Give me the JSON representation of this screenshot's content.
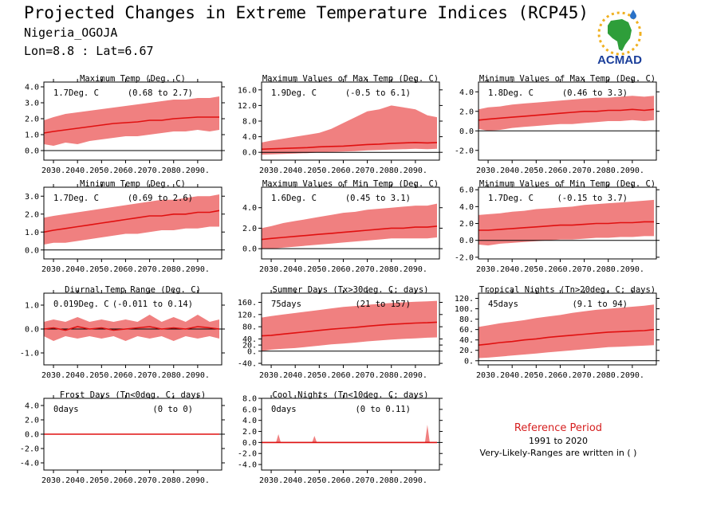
{
  "title": "Projected Changes in Extreme Temperature Indices (RCP45)",
  "location": "Nigeria_OGOJA",
  "coords": "Lon=8.8 : Lat=6.67",
  "logo_text": "ACMAD",
  "reference": {
    "title": "Reference Period",
    "years": "1991 to 2020",
    "note": "Very-Likely-Ranges are written in ( )"
  },
  "colors": {
    "band": "#f08080",
    "line": "#e01010",
    "zero": "#000000",
    "ref_text": "#d62020"
  },
  "chart_data": [
    {
      "type": "area",
      "title": "Maximum Temp (Deg. C)",
      "mean_label": "1.7Deg. C",
      "range_label": "(0.68 to 2.7)",
      "x_ticks": [
        2030,
        2040,
        2050,
        2060,
        2070,
        2080,
        2090
      ],
      "x_tick_labels": [
        "2030.",
        "2040.",
        "2050.",
        "2060.",
        "2070.",
        "2080.",
        "2090."
      ],
      "xlim": [
        2026,
        2100
      ],
      "ylim": [
        -0.6,
        4.3
      ],
      "y_ticks": [
        0,
        1,
        2,
        3,
        4
      ],
      "y_tick_labels": [
        "0.0",
        "1.0",
        "2.0",
        "3.0",
        "4.0"
      ],
      "x": [
        2026,
        2030,
        2035,
        2040,
        2045,
        2050,
        2055,
        2060,
        2065,
        2070,
        2075,
        2080,
        2085,
        2090,
        2095,
        2099
      ],
      "mean": [
        1.1,
        1.2,
        1.3,
        1.4,
        1.5,
        1.6,
        1.7,
        1.75,
        1.8,
        1.9,
        1.9,
        2.0,
        2.05,
        2.1,
        2.1,
        2.1
      ],
      "low": [
        0.4,
        0.3,
        0.5,
        0.4,
        0.6,
        0.7,
        0.8,
        0.9,
        0.9,
        1.0,
        1.1,
        1.2,
        1.2,
        1.3,
        1.2,
        1.3
      ],
      "high": [
        1.9,
        2.1,
        2.3,
        2.4,
        2.5,
        2.6,
        2.7,
        2.8,
        2.9,
        3.0,
        3.1,
        3.2,
        3.2,
        3.3,
        3.3,
        3.4
      ]
    },
    {
      "type": "area",
      "title": "Maximum Values of Max Temp (Deg. C)",
      "mean_label": "1.9Deg. C",
      "range_label": "(-0.5 to 6.1)",
      "x_ticks": [
        2030,
        2040,
        2050,
        2060,
        2070,
        2080,
        2090
      ],
      "x_tick_labels": [
        "2030.",
        "2040.",
        "2050.",
        "2060.",
        "2070.",
        "2080.",
        "2090."
      ],
      "xlim": [
        2026,
        2100
      ],
      "ylim": [
        -2,
        18
      ],
      "y_ticks": [
        0,
        4,
        8,
        12,
        16
      ],
      "y_tick_labels": [
        "0.0",
        "4.0",
        "8.0",
        "12.0",
        "16.0"
      ],
      "x": [
        2026,
        2030,
        2035,
        2040,
        2045,
        2050,
        2055,
        2060,
        2065,
        2070,
        2075,
        2080,
        2085,
        2090,
        2095,
        2099
      ],
      "mean": [
        0.8,
        0.9,
        1.0,
        1.1,
        1.2,
        1.4,
        1.5,
        1.6,
        1.8,
        2.0,
        2.1,
        2.3,
        2.4,
        2.5,
        2.4,
        2.5
      ],
      "low": [
        -0.6,
        -0.5,
        -0.4,
        -0.3,
        -0.2,
        0.0,
        0.1,
        0.2,
        0.3,
        0.5,
        0.6,
        0.7,
        0.8,
        0.9,
        0.8,
        0.9
      ],
      "high": [
        2.5,
        3.0,
        3.5,
        4.0,
        4.5,
        5.0,
        6.0,
        7.5,
        9.0,
        10.5,
        11.0,
        12.0,
        11.5,
        11.0,
        9.5,
        9.0
      ]
    },
    {
      "type": "area",
      "title": "Minimum Values of Max Temp (Deg. C)",
      "mean_label": "1.8Deg. C",
      "range_label": "(0.46 to 3.3)",
      "x_ticks": [
        2030,
        2040,
        2050,
        2060,
        2070,
        2080,
        2090
      ],
      "x_tick_labels": [
        "2030.",
        "2040.",
        "2050.",
        "2060.",
        "2070.",
        "2080.",
        "2090."
      ],
      "xlim": [
        2026,
        2100
      ],
      "ylim": [
        -3,
        5
      ],
      "y_ticks": [
        -2,
        0,
        2,
        4
      ],
      "y_tick_labels": [
        "-2.0",
        "0.0",
        "2.0",
        "4.0"
      ],
      "x": [
        2026,
        2030,
        2035,
        2040,
        2045,
        2050,
        2055,
        2060,
        2065,
        2070,
        2075,
        2080,
        2085,
        2090,
        2095,
        2099
      ],
      "mean": [
        1.1,
        1.2,
        1.3,
        1.4,
        1.5,
        1.6,
        1.7,
        1.8,
        1.9,
        2.0,
        2.0,
        2.1,
        2.1,
        2.2,
        2.1,
        2.2
      ],
      "low": [
        0.2,
        0.0,
        0.1,
        0.3,
        0.4,
        0.5,
        0.6,
        0.7,
        0.7,
        0.8,
        0.9,
        1.0,
        1.0,
        1.1,
        1.0,
        1.1
      ],
      "high": [
        2.2,
        2.4,
        2.5,
        2.7,
        2.8,
        2.9,
        3.0,
        3.1,
        3.2,
        3.3,
        3.4,
        3.4,
        3.5,
        3.6,
        3.5,
        3.6
      ]
    },
    {
      "type": "area",
      "title": "Minimum Temp (Deg. C)",
      "mean_label": "1.7Deg. C",
      "range_label": "(0.69 to 2.6)",
      "x_ticks": [
        2030,
        2040,
        2050,
        2060,
        2070,
        2080,
        2090
      ],
      "x_tick_labels": [
        "2030.",
        "2040.",
        "2050.",
        "2060.",
        "2070.",
        "2080.",
        "2090."
      ],
      "xlim": [
        2026,
        2100
      ],
      "ylim": [
        -0.5,
        3.5
      ],
      "y_ticks": [
        0,
        1,
        2,
        3
      ],
      "y_tick_labels": [
        "0.0",
        "1.0",
        "2.0",
        "3.0"
      ],
      "x": [
        2026,
        2030,
        2035,
        2040,
        2045,
        2050,
        2055,
        2060,
        2065,
        2070,
        2075,
        2080,
        2085,
        2090,
        2095,
        2099
      ],
      "mean": [
        1.0,
        1.1,
        1.2,
        1.3,
        1.4,
        1.5,
        1.6,
        1.7,
        1.8,
        1.9,
        1.9,
        2.0,
        2.0,
        2.1,
        2.1,
        2.2
      ],
      "low": [
        0.3,
        0.4,
        0.4,
        0.5,
        0.6,
        0.7,
        0.8,
        0.9,
        0.9,
        1.0,
        1.1,
        1.1,
        1.2,
        1.2,
        1.3,
        1.3
      ],
      "high": [
        1.8,
        1.9,
        2.0,
        2.1,
        2.2,
        2.3,
        2.4,
        2.5,
        2.6,
        2.7,
        2.8,
        2.8,
        2.9,
        3.0,
        3.0,
        3.1
      ]
    },
    {
      "type": "area",
      "title": "Maximum Values of Min Temp (Deg. C)",
      "mean_label": "1.6Deg. C",
      "range_label": "(0.45 to 3.1)",
      "x_ticks": [
        2030,
        2040,
        2050,
        2060,
        2070,
        2080,
        2090
      ],
      "x_tick_labels": [
        "2030.",
        "2040.",
        "2050.",
        "2060.",
        "2070.",
        "2080.",
        "2090."
      ],
      "xlim": [
        2026,
        2100
      ],
      "ylim": [
        -1,
        6
      ],
      "y_ticks": [
        0,
        2,
        4
      ],
      "y_tick_labels": [
        "0.0",
        "2.0",
        "4.0"
      ],
      "x": [
        2026,
        2030,
        2035,
        2040,
        2045,
        2050,
        2055,
        2060,
        2065,
        2070,
        2075,
        2080,
        2085,
        2090,
        2095,
        2099
      ],
      "mean": [
        0.9,
        1.0,
        1.1,
        1.2,
        1.3,
        1.4,
        1.5,
        1.6,
        1.7,
        1.8,
        1.9,
        2.0,
        2.0,
        2.1,
        2.1,
        2.2
      ],
      "low": [
        0.0,
        0.0,
        0.1,
        0.2,
        0.3,
        0.4,
        0.5,
        0.6,
        0.7,
        0.8,
        0.9,
        1.0,
        1.0,
        1.0,
        1.0,
        1.1
      ],
      "high": [
        2.0,
        2.2,
        2.5,
        2.7,
        2.9,
        3.1,
        3.3,
        3.5,
        3.6,
        3.8,
        3.9,
        4.0,
        4.1,
        4.2,
        4.2,
        4.4
      ]
    },
    {
      "type": "area",
      "title": "Minimum Values of Min Temp (Deg. C)",
      "mean_label": "1.7Deg. C",
      "range_label": "(-0.15 to 3.7)",
      "x_ticks": [
        2030,
        2040,
        2050,
        2060,
        2070,
        2080,
        2090
      ],
      "x_tick_labels": [
        "2030.",
        "2040.",
        "2050.",
        "2060.",
        "2070.",
        "2080.",
        "2090."
      ],
      "xlim": [
        2026,
        2100
      ],
      "ylim": [
        -2.2,
        6.3
      ],
      "y_ticks": [
        -2,
        0,
        2,
        4,
        6
      ],
      "y_tick_labels": [
        "-2.0",
        "0.0",
        "2.0",
        "4.0",
        "6.0"
      ],
      "x": [
        2026,
        2030,
        2035,
        2040,
        2045,
        2050,
        2055,
        2060,
        2065,
        2070,
        2075,
        2080,
        2085,
        2090,
        2095,
        2099
      ],
      "mean": [
        1.2,
        1.2,
        1.3,
        1.4,
        1.5,
        1.6,
        1.7,
        1.8,
        1.8,
        1.9,
        2.0,
        2.0,
        2.1,
        2.1,
        2.2,
        2.2
      ],
      "low": [
        -0.5,
        -0.6,
        -0.4,
        -0.3,
        -0.2,
        -0.1,
        0.0,
        0.1,
        0.1,
        0.2,
        0.3,
        0.3,
        0.4,
        0.4,
        0.5,
        0.5
      ],
      "high": [
        3.0,
        3.1,
        3.2,
        3.4,
        3.5,
        3.7,
        3.8,
        3.9,
        4.0,
        4.2,
        4.3,
        4.4,
        4.5,
        4.6,
        4.7,
        4.8
      ]
    },
    {
      "type": "area",
      "title": "Diurnal Temp Range (Deg. C)",
      "mean_label": "0.019Deg. C",
      "range_label": "(-0.011 to 0.14)",
      "x_ticks": [
        2030,
        2040,
        2050,
        2060,
        2070,
        2080,
        2090
      ],
      "x_tick_labels": [
        "2030.",
        "2040.",
        "2050.",
        "2060.",
        "2070.",
        "2080.",
        "2090."
      ],
      "xlim": [
        2026,
        2100
      ],
      "ylim": [
        -1.5,
        1.5
      ],
      "y_ticks": [
        -1,
        0,
        1
      ],
      "y_tick_labels": [
        "-1.0",
        "0.0",
        "1.0"
      ],
      "x": [
        2026,
        2030,
        2035,
        2040,
        2045,
        2050,
        2055,
        2060,
        2065,
        2070,
        2075,
        2080,
        2085,
        2090,
        2095,
        2099
      ],
      "mean": [
        0.0,
        0.05,
        -0.05,
        0.1,
        0.0,
        0.05,
        -0.05,
        0.0,
        0.05,
        0.1,
        0.0,
        0.05,
        0.0,
        0.1,
        0.05,
        0.0
      ],
      "low": [
        -0.3,
        -0.5,
        -0.3,
        -0.4,
        -0.3,
        -0.4,
        -0.3,
        -0.5,
        -0.3,
        -0.4,
        -0.3,
        -0.5,
        -0.3,
        -0.4,
        -0.3,
        -0.4
      ],
      "high": [
        0.3,
        0.4,
        0.3,
        0.5,
        0.3,
        0.4,
        0.3,
        0.4,
        0.3,
        0.6,
        0.3,
        0.5,
        0.3,
        0.6,
        0.3,
        0.4
      ]
    },
    {
      "type": "area",
      "title": "Summer Days (Tx>30deg. C; days)",
      "mean_label": "75days",
      "range_label": "(21 to 157)",
      "x_ticks": [
        2030,
        2040,
        2050,
        2060,
        2070,
        2080,
        2090
      ],
      "x_tick_labels": [
        "2030.",
        "2040.",
        "2050.",
        "2060.",
        "2070.",
        "2080.",
        "2090."
      ],
      "xlim": [
        2026,
        2100
      ],
      "ylim": [
        -45,
        190
      ],
      "y_ticks": [
        -40,
        0,
        20,
        40,
        80,
        120,
        160
      ],
      "y_tick_labels": [
        "-40.",
        "0.",
        "20.",
        "40.",
        "80.",
        "120.",
        "160."
      ],
      "x": [
        2026,
        2030,
        2035,
        2040,
        2045,
        2050,
        2055,
        2060,
        2065,
        2070,
        2075,
        2080,
        2085,
        2090,
        2095,
        2099
      ],
      "mean": [
        50,
        52,
        56,
        60,
        64,
        68,
        72,
        75,
        78,
        82,
        85,
        88,
        90,
        92,
        93,
        95
      ],
      "low": [
        0,
        5,
        8,
        10,
        14,
        18,
        22,
        25,
        28,
        32,
        35,
        38,
        40,
        42,
        44,
        45
      ],
      "high": [
        110,
        115,
        120,
        125,
        130,
        135,
        140,
        145,
        148,
        152,
        155,
        158,
        160,
        162,
        163,
        165
      ]
    },
    {
      "type": "area",
      "title": "Tropical Nights (Tn>20deg. C; days)",
      "mean_label": "45days",
      "range_label": "(9.1 to 94)",
      "x_ticks": [
        2030,
        2040,
        2050,
        2060,
        2070,
        2080,
        2090
      ],
      "x_tick_labels": [
        "2030.",
        "2040.",
        "2050.",
        "2060.",
        "2070.",
        "2080.",
        "2090."
      ],
      "xlim": [
        2026,
        2100
      ],
      "ylim": [
        -8,
        130
      ],
      "y_ticks": [
        0,
        20,
        40,
        60,
        80,
        100,
        120
      ],
      "y_tick_labels": [
        "0.",
        "20.",
        "40.",
        "60.",
        "80.",
        "100.",
        "120."
      ],
      "x": [
        2026,
        2030,
        2035,
        2040,
        2045,
        2050,
        2055,
        2060,
        2065,
        2070,
        2075,
        2080,
        2085,
        2090,
        2095,
        2099
      ],
      "mean": [
        30,
        32,
        35,
        37,
        40,
        42,
        45,
        47,
        49,
        51,
        53,
        55,
        56,
        57,
        58,
        60
      ],
      "low": [
        5,
        6,
        8,
        10,
        12,
        14,
        16,
        18,
        20,
        22,
        24,
        26,
        27,
        28,
        29,
        30
      ],
      "high": [
        65,
        68,
        72,
        75,
        78,
        82,
        85,
        88,
        92,
        95,
        98,
        100,
        102,
        104,
        106,
        108
      ]
    },
    {
      "type": "area",
      "title": "Frost Days (Tn<0deg. C; days)",
      "mean_label": "0days",
      "range_label": "(0 to 0)",
      "x_ticks": [
        2030,
        2040,
        2050,
        2060,
        2070,
        2080,
        2090
      ],
      "x_tick_labels": [
        "2030.",
        "2040.",
        "2050.",
        "2060.",
        "2070.",
        "2080.",
        "2090."
      ],
      "xlim": [
        2026,
        2100
      ],
      "ylim": [
        -5,
        5
      ],
      "y_ticks": [
        -4,
        -2,
        0,
        2,
        4
      ],
      "y_tick_labels": [
        "-4.0",
        "-2.0",
        "0.0",
        "2.0",
        "4.0"
      ],
      "x": [
        2026,
        2099
      ],
      "mean": [
        0,
        0
      ],
      "low": [
        0,
        0
      ],
      "high": [
        0,
        0
      ]
    },
    {
      "type": "area",
      "title": "Cool Nights (Tn<10deg. C; days)",
      "mean_label": "0days",
      "range_label": "(0 to 0.11)",
      "x_ticks": [
        2030,
        2040,
        2050,
        2060,
        2070,
        2080,
        2090
      ],
      "x_tick_labels": [
        "2030.",
        "2040.",
        "2050.",
        "2060.",
        "2070.",
        "2080.",
        "2090."
      ],
      "xlim": [
        2026,
        2100
      ],
      "ylim": [
        -5,
        8
      ],
      "y_ticks": [
        -4,
        -2,
        0,
        2,
        4,
        6,
        8
      ],
      "y_tick_labels": [
        "-4.0",
        "-2.0",
        "0.0",
        "2.0",
        "4.0",
        "6.0",
        "8.0"
      ],
      "x": [
        2026,
        2032,
        2033,
        2034,
        2047,
        2048,
        2049,
        2094,
        2095,
        2096,
        2099
      ],
      "mean": [
        0,
        0,
        0,
        0,
        0,
        0,
        0,
        0,
        0,
        0,
        0
      ],
      "low": [
        0,
        0,
        0,
        0,
        0,
        0,
        0,
        0,
        0,
        0,
        0
      ],
      "high": [
        0,
        0,
        1.5,
        0,
        0,
        1.2,
        0,
        0,
        3.2,
        0,
        0
      ]
    }
  ]
}
